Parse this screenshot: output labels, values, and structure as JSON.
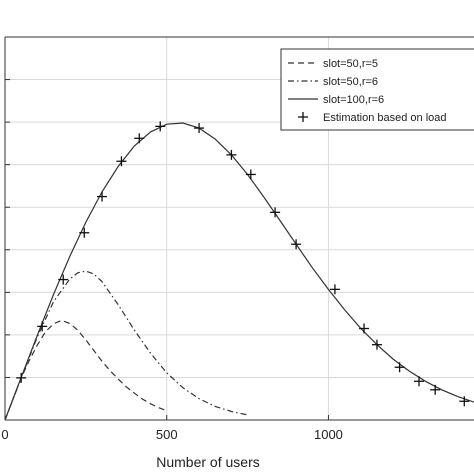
{
  "chart_data": {
    "type": "line",
    "title": "",
    "xlabel": "Number of users",
    "ylabel": "",
    "xlim": [
      0,
      1450
    ],
    "ylim": [
      0,
      90
    ],
    "xticks": [
      0,
      500,
      1000
    ],
    "xtick_labels": [
      "0",
      "500",
      "1000"
    ],
    "yticks": [
      10,
      20,
      30,
      40,
      50,
      60,
      70,
      80
    ],
    "grid": true,
    "legend_position": "top-right",
    "series": [
      {
        "name": "slot=50,r=5",
        "style": "dashed",
        "color": "#333333",
        "x": [
          0,
          25,
          50,
          75,
          100,
          125,
          150,
          175,
          200,
          225,
          250,
          275,
          300,
          325,
          350,
          375,
          400,
          425,
          450,
          475,
          500
        ],
        "y": [
          0,
          5.0,
          9.9,
          14.0,
          17.6,
          20.7,
          22.6,
          23.4,
          22.7,
          21.1,
          18.8,
          16.3,
          13.8,
          11.6,
          9.6,
          7.8,
          6.3,
          4.9,
          3.8,
          2.9,
          2.2
        ]
      },
      {
        "name": "slot=50,r=6",
        "style": "dashdot",
        "color": "#333333",
        "x": [
          0,
          50,
          100,
          150,
          200,
          225,
          250,
          275,
          300,
          350,
          400,
          450,
          500,
          550,
          600,
          650,
          700,
          750
        ],
        "y": [
          0,
          9.9,
          19.5,
          27.8,
          33.1,
          34.6,
          35.0,
          34.3,
          32.5,
          27.1,
          21.1,
          15.7,
          11.1,
          7.6,
          5.0,
          3.2,
          2.0,
          1.2
        ]
      },
      {
        "name": "slot=100,r=6",
        "style": "solid",
        "color": "#333333",
        "x": [
          0,
          50,
          100,
          150,
          200,
          250,
          300,
          350,
          400,
          450,
          500,
          550,
          600,
          650,
          700,
          750,
          800,
          850,
          900,
          950,
          1000,
          1050,
          1100,
          1150,
          1200,
          1250,
          1300,
          1350,
          1400,
          1450
        ],
        "y": [
          0,
          10.0,
          19.9,
          29.5,
          38.4,
          46.5,
          53.6,
          59.6,
          64.4,
          67.7,
          69.5,
          69.8,
          68.6,
          66.0,
          62.3,
          57.7,
          52.4,
          46.9,
          41.3,
          35.8,
          30.7,
          25.9,
          21.5,
          17.7,
          14.3,
          11.5,
          9.1,
          7.1,
          5.5,
          4.2
        ]
      },
      {
        "name": "Estimation based on load",
        "style": "marker-plus",
        "color": "#111111",
        "x": [
          50,
          115,
          180,
          245,
          300,
          360,
          415,
          480,
          600,
          700,
          760,
          835,
          900,
          1020,
          1110,
          1150,
          1220,
          1280,
          1330,
          1420
        ],
        "y": [
          9.9,
          22.0,
          33.0,
          44.0,
          52.5,
          60.8,
          66.2,
          69.0,
          68.6,
          62.3,
          57.7,
          48.8,
          41.3,
          30.7,
          21.5,
          17.7,
          12.4,
          9.1,
          7.1,
          4.4
        ]
      }
    ]
  }
}
